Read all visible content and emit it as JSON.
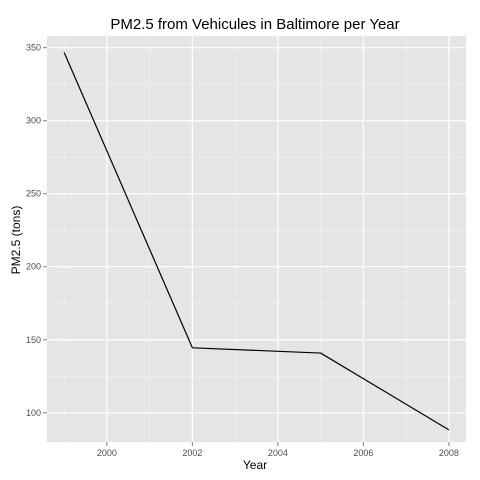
{
  "chart_data": {
    "type": "line",
    "title": "PM2.5 from Vehicules in Baltimore per Year",
    "xlabel": "Year",
    "ylabel": "PM2.5 (tons)",
    "xlim": [
      1998.6,
      2008.4
    ],
    "ylim": [
      80,
      358
    ],
    "x_ticks": [
      2000,
      2002,
      2004,
      2006,
      2008
    ],
    "y_ticks": [
      100,
      150,
      200,
      250,
      300,
      350
    ],
    "grid": true,
    "legend": "none",
    "series": [
      {
        "x": [
          1999,
          2002,
          2005,
          2008
        ],
        "y": [
          346.8,
          144.5,
          140.9,
          88.3
        ]
      }
    ],
    "colors": {
      "panel": "#e5e5e5",
      "grid_major": "#ffffff",
      "grid_minor": "#f2f2f2",
      "line": "#000000",
      "tick": "#7f7f7f"
    }
  }
}
